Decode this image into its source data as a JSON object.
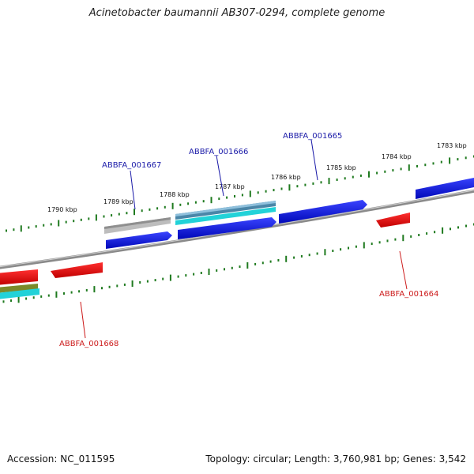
{
  "title": "Acinetobacter baumannii AB307-0294, complete genome",
  "footer": {
    "accession": "Accession: NC_011595",
    "stats": "Topology: circular; Length: 3,760,981 bp; Genes: 3,542"
  },
  "colors": {
    "forward_cds": "#0a14e8",
    "reverse_cds": "#ee1010",
    "pseudo": "#b8b8b8",
    "teal": "#4a86a8",
    "cyan": "#22d2d8",
    "olive": "#7a8a2a",
    "backbone": "#888888",
    "tick": "#1f7a1f"
  },
  "ticks": [
    {
      "label": "1790 kbp"
    },
    {
      "label": "1789 kbp"
    },
    {
      "label": "1788 kbp"
    },
    {
      "label": "1787 kbp"
    },
    {
      "label": "1786 kbp"
    },
    {
      "label": "1785 kbp"
    },
    {
      "label": "1784 kbp"
    },
    {
      "label": "1783 kbp"
    }
  ],
  "genes": {
    "g1667": "ABBFA_001667",
    "g1666": "ABBFA_001666",
    "g1665": "ABBFA_001665",
    "g1664": "ABBFA_001664",
    "g1668": "ABBFA_001668"
  }
}
